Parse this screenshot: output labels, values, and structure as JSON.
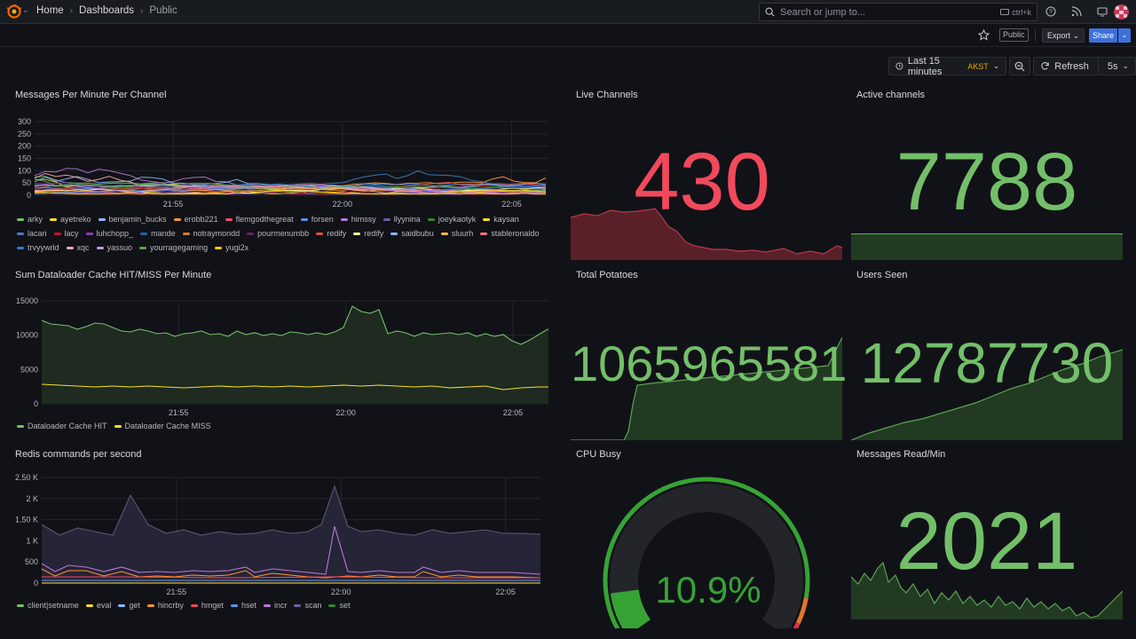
{
  "nav": {
    "breadcrumbs": [
      "Home",
      "Dashboards",
      "Public"
    ],
    "search_placeholder": "Search or jump to...",
    "search_shortcut": "ctrl+k"
  },
  "toolbar": {
    "public_badge": "Public",
    "export_label": "Export",
    "share_label": "Share"
  },
  "timepicker": {
    "range_label": "Last 15 minutes",
    "timezone": "AKST",
    "refresh_label": "Refresh",
    "refresh_interval": "5s"
  },
  "panels": {
    "messages": {
      "title": "Messages Per Minute Per Channel",
      "yticks": [
        "300",
        "250",
        "200",
        "150",
        "100",
        "50",
        "0"
      ],
      "xticks": [
        "21:55",
        "22:00",
        "22:05"
      ],
      "legend": [
        {
          "name": "arky",
          "color": "#73bf69"
        },
        {
          "name": "ayetreko",
          "color": "#fade2a"
        },
        {
          "name": "benjamin_bucks",
          "color": "#8ab8ff"
        },
        {
          "name": "erobb221",
          "color": "#ff9830"
        },
        {
          "name": "flemgodthegreat",
          "color": "#f2495c"
        },
        {
          "name": "forsen",
          "color": "#5794f2"
        },
        {
          "name": "himssy",
          "color": "#b877d9"
        },
        {
          "name": "llyynina",
          "color": "#705da0"
        },
        {
          "name": "joeykaotyk",
          "color": "#37872d"
        },
        {
          "name": "kaysan",
          "color": "#fade2a"
        },
        {
          "name": "lacari",
          "color": "#447ebc"
        },
        {
          "name": "lacy",
          "color": "#c4162a"
        },
        {
          "name": "luhchopp_",
          "color": "#8f3bb8"
        },
        {
          "name": "mande",
          "color": "#1f60c4"
        },
        {
          "name": "notraymondd",
          "color": "#e0752d"
        },
        {
          "name": "pourmenumbb",
          "color": "#6d1f62"
        },
        {
          "name": "redify",
          "color": "#e24d42"
        },
        {
          "name": "redify",
          "color": "#fff899"
        },
        {
          "name": "saidbubu",
          "color": "#8ab8ff"
        },
        {
          "name": "sluurh",
          "color": "#ffb357"
        },
        {
          "name": "stableronaldo",
          "color": "#ff7383"
        },
        {
          "name": "trvyywrld",
          "color": "#3274d9"
        },
        {
          "name": "xqc",
          "color": "#ffa6b0"
        },
        {
          "name": "yassuo",
          "color": "#ca95e5"
        },
        {
          "name": "yourragegaming",
          "color": "#56a64b"
        },
        {
          "name": "yugi2x",
          "color": "#f2cc0c"
        }
      ]
    },
    "live_channels": {
      "title": "Live Channels",
      "value": "430",
      "color": "#f2495c"
    },
    "active_channels": {
      "title": "Active channels",
      "value": "7788",
      "color": "#73bf69"
    },
    "dataloader": {
      "title": "Sum Dataloader Cache HIT/MISS Per Minute",
      "yticks": [
        "15000",
        "10000",
        "5000",
        "0"
      ],
      "xticks": [
        "21:55",
        "22:00",
        "22:05"
      ],
      "legend": [
        {
          "name": "Dataloader Cache HIT",
          "color": "#73bf69"
        },
        {
          "name": "Dataloader Cache MISS",
          "color": "#fade2a"
        }
      ]
    },
    "total_potatoes": {
      "title": "Total Potatoes",
      "value": "1065965581",
      "color": "#73bf69"
    },
    "users_seen": {
      "title": "Users Seen",
      "value": "12787730",
      "color": "#73bf69"
    },
    "redis": {
      "title": "Redis commands per second",
      "yticks": [
        "2.50 K",
        "2 K",
        "1.50 K",
        "1 K",
        "500",
        "0"
      ],
      "xticks": [
        "21:55",
        "22:00",
        "22:05"
      ],
      "legend": [
        {
          "name": "client|setname",
          "color": "#73bf69"
        },
        {
          "name": "eval",
          "color": "#fade2a"
        },
        {
          "name": "get",
          "color": "#8ab8ff"
        },
        {
          "name": "hincrby",
          "color": "#ff9830"
        },
        {
          "name": "hmget",
          "color": "#f2495c"
        },
        {
          "name": "hset",
          "color": "#5794f2"
        },
        {
          "name": "incr",
          "color": "#b877d9"
        },
        {
          "name": "scan",
          "color": "#705da0"
        },
        {
          "name": "set",
          "color": "#37872d"
        }
      ]
    },
    "cpu_busy": {
      "title": "CPU Busy",
      "value": "10.9%",
      "percent": 10.9,
      "color": "#37a334"
    },
    "messages_read": {
      "title": "Messages Read/Min",
      "value": "2021",
      "color": "#73bf69"
    }
  }
}
